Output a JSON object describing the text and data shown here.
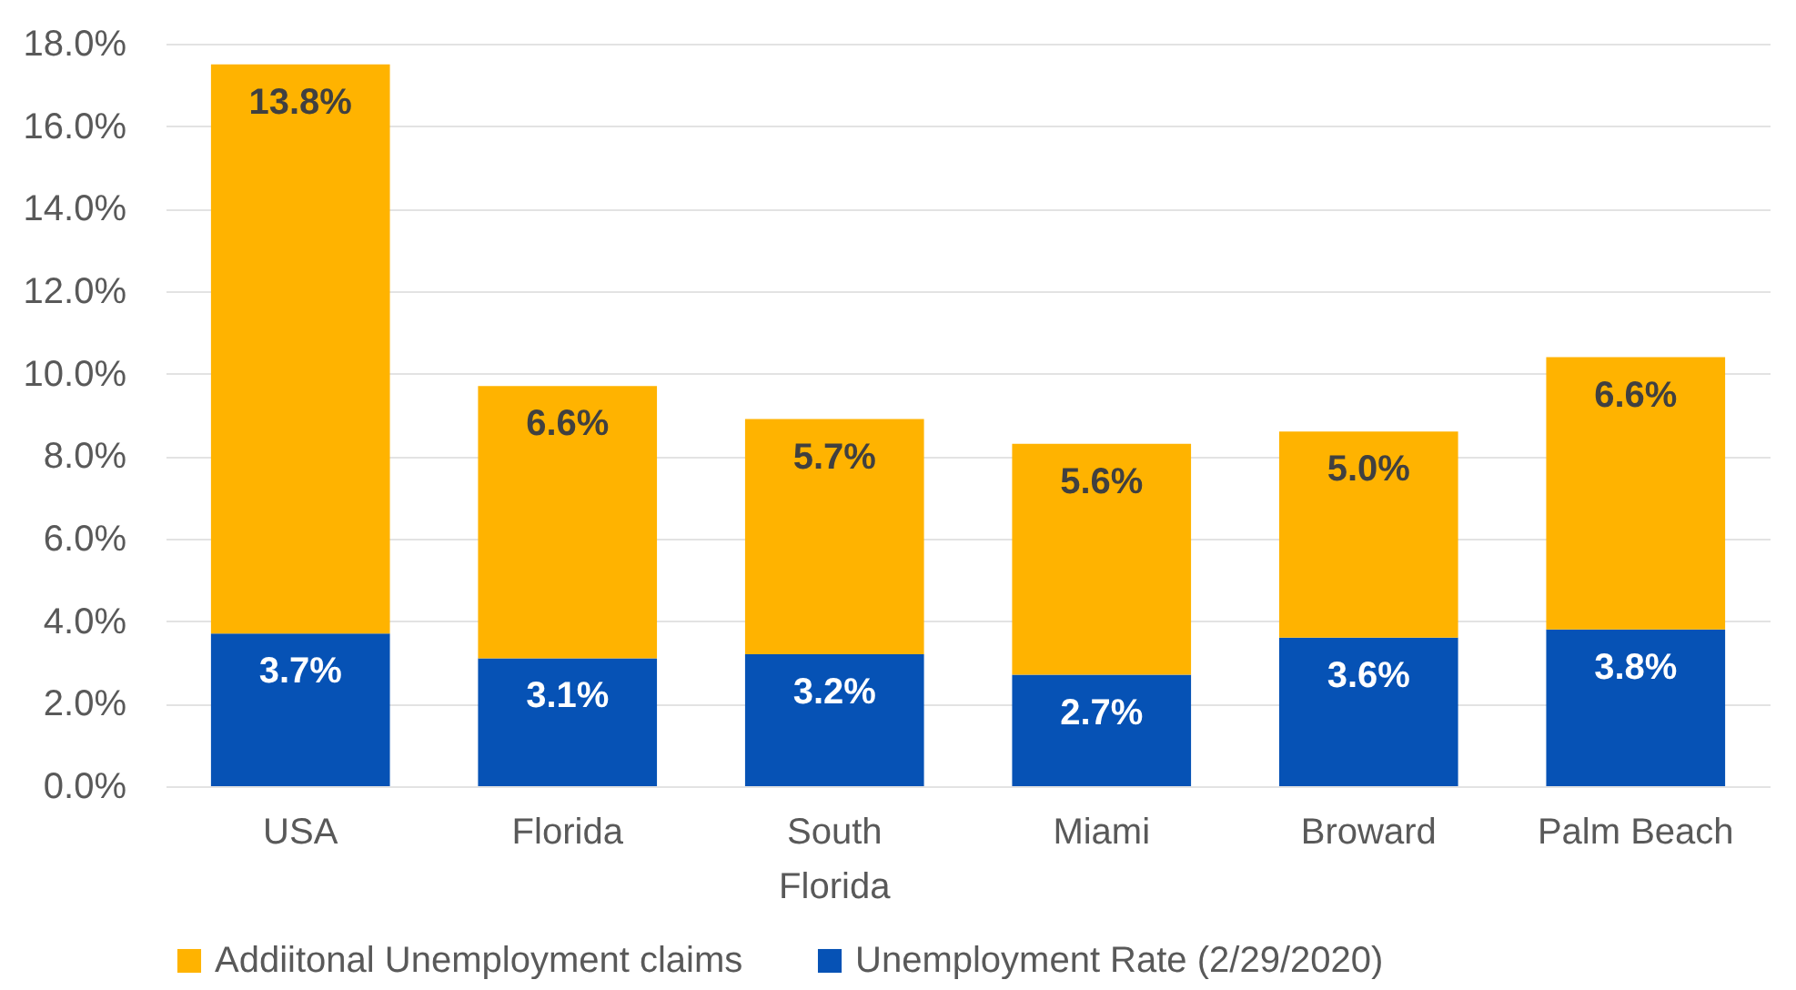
{
  "chart_data": {
    "type": "bar",
    "stacked": true,
    "categories": [
      "USA",
      "Florida",
      "South Florida",
      "Miami",
      "Broward",
      "Palm Beach"
    ],
    "series": [
      {
        "name": "Unemployment Rate (2/29/2020)",
        "color": "#0652b5",
        "values": [
          3.7,
          3.1,
          3.2,
          2.7,
          3.6,
          3.8
        ],
        "value_labels": [
          "3.7%",
          "3.1%",
          "3.2%",
          "2.7%",
          "3.6%",
          "3.8%"
        ]
      },
      {
        "name": "Addiitonal Unemployment claims",
        "color": "#ffb300",
        "values": [
          13.8,
          6.6,
          5.7,
          5.6,
          5.0,
          6.6
        ],
        "value_labels": [
          "13.8%",
          "6.6%",
          "5.7%",
          "5.6%",
          "5.0%",
          "6.6%"
        ]
      }
    ],
    "ylim": [
      0,
      18
    ],
    "yticks": [
      {
        "value": 0,
        "label": "0.0%"
      },
      {
        "value": 2,
        "label": "2.0%"
      },
      {
        "value": 4,
        "label": "4.0%"
      },
      {
        "value": 6,
        "label": "6.0%"
      },
      {
        "value": 8,
        "label": "8.0%"
      },
      {
        "value": 10,
        "label": "10.0%"
      },
      {
        "value": 12,
        "label": "12.0%"
      },
      {
        "value": 14,
        "label": "14.0%"
      },
      {
        "value": 16,
        "label": "16.0%"
      },
      {
        "value": 18,
        "label": "18.0%"
      }
    ],
    "grid": "y",
    "legend": "bottom"
  }
}
